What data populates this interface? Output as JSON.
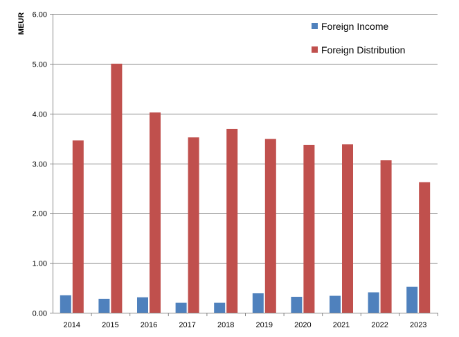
{
  "chart_data": {
    "type": "bar",
    "title": "",
    "xlabel": "",
    "ylabel": "MEUR",
    "ylim": [
      0,
      6
    ],
    "yticks": [
      "0.00",
      "1.00",
      "2.00",
      "3.00",
      "4.00",
      "5.00",
      "6.00"
    ],
    "grid": true,
    "legend_position": "top-right",
    "categories": [
      "2014",
      "2015",
      "2016",
      "2017",
      "2018",
      "2019",
      "2020",
      "2021",
      "2022",
      "2023"
    ],
    "series": [
      {
        "name": "Foreign Income",
        "color": "#4F81BD",
        "values": [
          0.35,
          0.28,
          0.31,
          0.2,
          0.2,
          0.39,
          0.32,
          0.34,
          0.41,
          0.52
        ]
      },
      {
        "name": "Foreign Distribution",
        "color": "#C0504D",
        "values": [
          3.46,
          5.0,
          4.02,
          3.52,
          3.69,
          3.49,
          3.37,
          3.38,
          3.06,
          2.62
        ]
      }
    ]
  }
}
